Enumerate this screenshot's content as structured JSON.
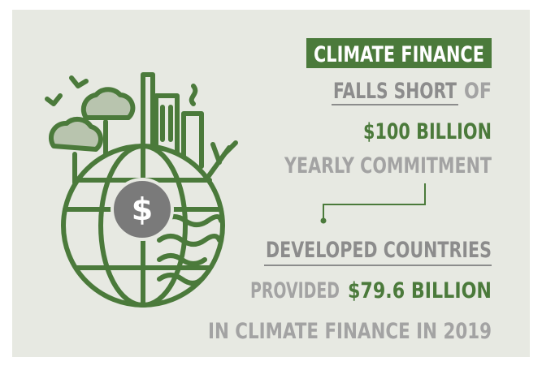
{
  "header": {
    "title": "CLIMATE FINANCE"
  },
  "pledge": {
    "highlight": "FALLS SHORT",
    "connector": "OF",
    "amount": "$100 BILLION",
    "label": "YEARLY COMMITMENT"
  },
  "actual": {
    "subject": "DEVELOPED COUNTRIES",
    "verb": "PROVIDED",
    "amount": "$79.6 BILLION",
    "label": "IN CLIMATE FINANCE IN 2019"
  },
  "icon": {
    "symbol": "$"
  }
}
